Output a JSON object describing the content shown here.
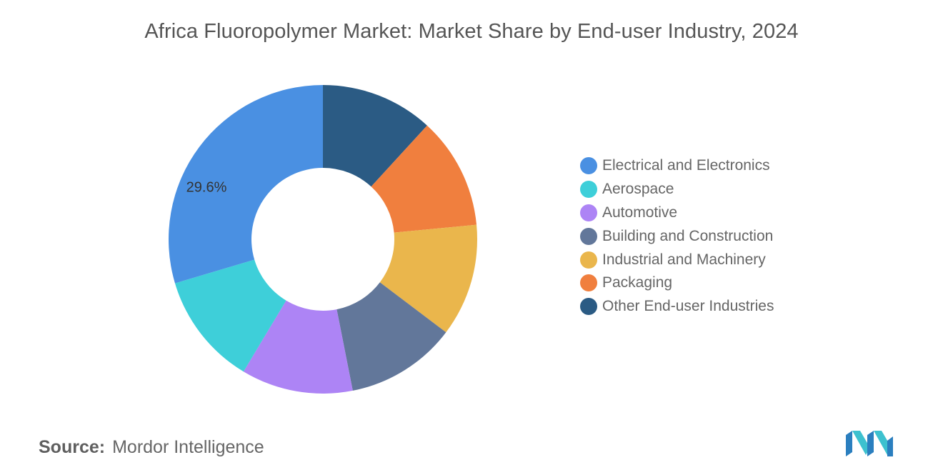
{
  "title": "Africa Fluoropolymer Market: Market Share by End-user Industry, 2024",
  "source": {
    "label": "Source:",
    "value": "Mordor Intelligence"
  },
  "logo": {
    "name": "mordor-intelligence-logo",
    "colors": [
      "#2b7fbf",
      "#3dc1cf"
    ]
  },
  "chart_data": {
    "type": "pie",
    "donut": true,
    "title": "Africa Fluoropolymer Market: Market Share by End-user Industry, 2024",
    "legend_position": "right",
    "categories": [
      "Electrical and Electronics",
      "Aerospace",
      "Automotive",
      "Building and Construction",
      "Industrial and Machinery",
      "Packaging",
      "Other End-user Industries"
    ],
    "values": [
      29.6,
      11.8,
      11.7,
      11.6,
      11.8,
      11.7,
      11.8
    ],
    "colors": [
      "#4a90e2",
      "#3ecfd9",
      "#ad84f5",
      "#62779a",
      "#eab64c",
      "#f07f3e",
      "#2b5b84"
    ],
    "data_labels": [
      {
        "category": "Electrical and Electronics",
        "text": "29.6%"
      }
    ]
  }
}
